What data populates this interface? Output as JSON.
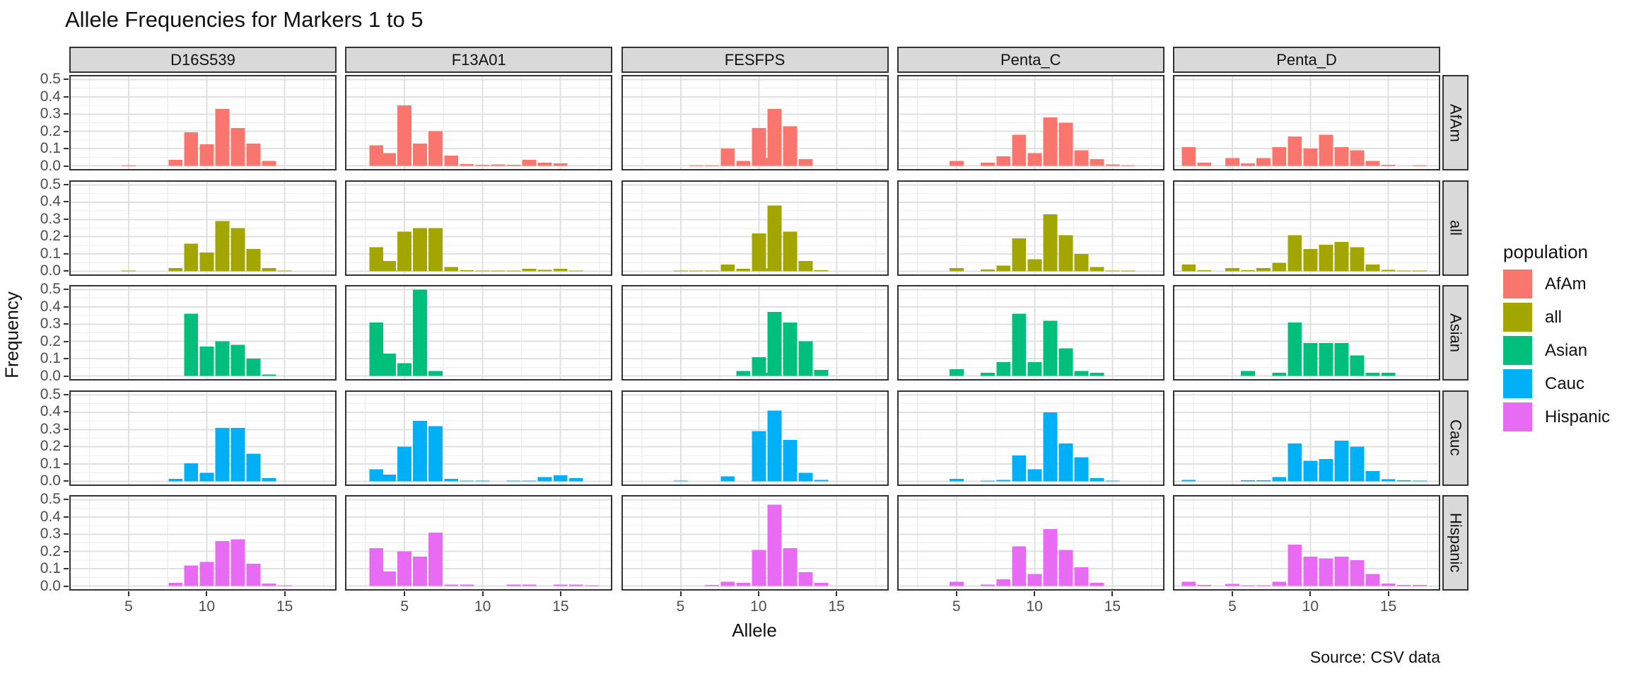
{
  "chart_data": {
    "type": "bar",
    "title": "Allele Frequencies for Markers 1 to 5",
    "xlabel": "Allele",
    "ylabel": "Frequency",
    "caption": "Source: CSV data",
    "legend_title": "population",
    "legend_position": "right",
    "grid": true,
    "x_ticks": [
      5,
      10,
      15
    ],
    "y_ticks": [
      0.0,
      0.1,
      0.2,
      0.3,
      0.4,
      0.5
    ],
    "y_tick_labels": [
      "0.0",
      "0.1",
      "0.2",
      "0.3",
      "0.4",
      "0.5"
    ],
    "xlim": [
      1.2,
      18.3
    ],
    "ylim": [
      0,
      0.5
    ],
    "markers": [
      "D16S539",
      "F13A01",
      "FESFPS",
      "Penta_C",
      "Penta_D"
    ],
    "populations": [
      {
        "name": "AfAm",
        "color": "#F8766D"
      },
      {
        "name": "all",
        "color": "#A3A500"
      },
      {
        "name": "Asian",
        "color": "#00BF7D"
      },
      {
        "name": "Cauc",
        "color": "#00B0F6"
      },
      {
        "name": "Hispanic",
        "color": "#E76BF3"
      }
    ],
    "frequencies": {
      "D16S539": {
        "AfAm": [
          [
            5,
            0.005
          ],
          [
            8,
            0.035
          ],
          [
            9,
            0.195
          ],
          [
            10,
            0.125
          ],
          [
            11,
            0.33
          ],
          [
            12,
            0.22
          ],
          [
            13,
            0.13
          ],
          [
            14,
            0.03
          ]
        ],
        "all": [
          [
            5,
            0.003
          ],
          [
            8,
            0.02
          ],
          [
            9,
            0.16
          ],
          [
            10,
            0.11
          ],
          [
            11,
            0.29
          ],
          [
            12,
            0.25
          ],
          [
            13,
            0.13
          ],
          [
            14,
            0.02
          ],
          [
            15,
            0.003
          ]
        ],
        "Asian": [
          [
            9,
            0.36
          ],
          [
            10,
            0.17
          ],
          [
            11,
            0.2
          ],
          [
            12,
            0.18
          ],
          [
            13,
            0.1
          ],
          [
            14,
            0.01
          ]
        ],
        "Cauc": [
          [
            8,
            0.015
          ],
          [
            9,
            0.105
          ],
          [
            10,
            0.05
          ],
          [
            11,
            0.31
          ],
          [
            12,
            0.31
          ],
          [
            13,
            0.16
          ],
          [
            14,
            0.02
          ]
        ],
        "Hispanic": [
          [
            8,
            0.02
          ],
          [
            9,
            0.12
          ],
          [
            10,
            0.14
          ],
          [
            11,
            0.26
          ],
          [
            12,
            0.27
          ],
          [
            13,
            0.13
          ],
          [
            14,
            0.015
          ],
          [
            15,
            0.003
          ]
        ]
      },
      "F13A01": {
        "AfAm": [
          [
            3.2,
            0.12
          ],
          [
            4,
            0.075
          ],
          [
            4.3,
            0.004
          ],
          [
            5,
            0.35
          ],
          [
            6,
            0.13
          ],
          [
            7,
            0.2
          ],
          [
            8,
            0.06
          ],
          [
            9,
            0.012
          ],
          [
            10,
            0.007
          ],
          [
            11,
            0.01
          ],
          [
            12,
            0.006
          ],
          [
            13,
            0.035
          ],
          [
            14,
            0.02
          ],
          [
            15,
            0.015
          ]
        ],
        "all": [
          [
            3.2,
            0.14
          ],
          [
            4,
            0.06
          ],
          [
            4.3,
            0.003
          ],
          [
            5,
            0.23
          ],
          [
            6,
            0.25
          ],
          [
            7,
            0.25
          ],
          [
            8,
            0.025
          ],
          [
            9,
            0.006
          ],
          [
            10,
            0.004
          ],
          [
            11,
            0.005
          ],
          [
            12,
            0.004
          ],
          [
            13,
            0.015
          ],
          [
            14,
            0.01
          ],
          [
            15,
            0.015
          ],
          [
            16,
            0.004
          ]
        ],
        "Asian": [
          [
            3.2,
            0.31
          ],
          [
            4,
            0.13
          ],
          [
            5,
            0.075
          ],
          [
            6,
            0.5
          ],
          [
            7,
            0.03
          ]
        ],
        "Cauc": [
          [
            3.2,
            0.07
          ],
          [
            4,
            0.04
          ],
          [
            5,
            0.2
          ],
          [
            6,
            0.35
          ],
          [
            7,
            0.32
          ],
          [
            8,
            0.015
          ],
          [
            9,
            0.004
          ],
          [
            10,
            0.004
          ],
          [
            12,
            0.005
          ],
          [
            13,
            0.005
          ],
          [
            14,
            0.025
          ],
          [
            15,
            0.035
          ],
          [
            16,
            0.02
          ]
        ],
        "Hispanic": [
          [
            3.2,
            0.22
          ],
          [
            4,
            0.085
          ],
          [
            5,
            0.2
          ],
          [
            6,
            0.17
          ],
          [
            7,
            0.31
          ],
          [
            8,
            0.008
          ],
          [
            9,
            0.008
          ],
          [
            12,
            0.008
          ],
          [
            13,
            0.008
          ],
          [
            15,
            0.008
          ],
          [
            16,
            0.008
          ],
          [
            17,
            0.004
          ]
        ]
      },
      "FESFPS": {
        "AfAm": [
          [
            6,
            0.004
          ],
          [
            7,
            0.004
          ],
          [
            8,
            0.1
          ],
          [
            9,
            0.03
          ],
          [
            10,
            0.22
          ],
          [
            10.75,
            0.045
          ],
          [
            11,
            0.33
          ],
          [
            12,
            0.23
          ],
          [
            13,
            0.04
          ]
        ],
        "all": [
          [
            5,
            0.002
          ],
          [
            6,
            0.003
          ],
          [
            7,
            0.003
          ],
          [
            8,
            0.04
          ],
          [
            9,
            0.015
          ],
          [
            10,
            0.22
          ],
          [
            10.75,
            0.017
          ],
          [
            11,
            0.38
          ],
          [
            12,
            0.23
          ],
          [
            13,
            0.06
          ],
          [
            14,
            0.006
          ]
        ],
        "Asian": [
          [
            9,
            0.03
          ],
          [
            10,
            0.11
          ],
          [
            10.75,
            0.02
          ],
          [
            11,
            0.37
          ],
          [
            12,
            0.31
          ],
          [
            13,
            0.2
          ],
          [
            14,
            0.035
          ]
        ],
        "Cauc": [
          [
            5,
            0.004
          ],
          [
            8,
            0.03
          ],
          [
            10,
            0.29
          ],
          [
            11,
            0.41
          ],
          [
            12,
            0.24
          ],
          [
            13,
            0.05
          ],
          [
            14,
            0.008
          ]
        ],
        "Hispanic": [
          [
            7,
            0.006
          ],
          [
            8,
            0.025
          ],
          [
            9,
            0.02
          ],
          [
            10,
            0.21
          ],
          [
            11,
            0.47
          ],
          [
            12,
            0.22
          ],
          [
            13,
            0.08
          ],
          [
            14,
            0.02
          ]
        ]
      },
      "Penta_C": {
        "AfAm": [
          [
            5,
            0.03
          ],
          [
            7,
            0.02
          ],
          [
            8,
            0.055
          ],
          [
            9,
            0.18
          ],
          [
            10,
            0.075
          ],
          [
            11,
            0.28
          ],
          [
            12,
            0.25
          ],
          [
            13,
            0.09
          ],
          [
            14,
            0.04
          ],
          [
            15,
            0.01
          ],
          [
            16,
            0.005
          ]
        ],
        "all": [
          [
            5,
            0.02
          ],
          [
            7,
            0.011
          ],
          [
            8,
            0.033
          ],
          [
            9,
            0.19
          ],
          [
            10,
            0.07
          ],
          [
            11,
            0.33
          ],
          [
            12,
            0.21
          ],
          [
            13,
            0.1
          ],
          [
            14,
            0.025
          ],
          [
            15,
            0.005
          ],
          [
            16,
            0.003
          ]
        ],
        "Asian": [
          [
            5,
            0.04
          ],
          [
            7,
            0.02
          ],
          [
            8,
            0.08
          ],
          [
            9,
            0.36
          ],
          [
            10,
            0.08
          ],
          [
            11,
            0.32
          ],
          [
            12,
            0.16
          ],
          [
            13,
            0.03
          ],
          [
            14,
            0.02
          ]
        ],
        "Cauc": [
          [
            5,
            0.015
          ],
          [
            7,
            0.005
          ],
          [
            8,
            0.01
          ],
          [
            9,
            0.15
          ],
          [
            10,
            0.07
          ],
          [
            11,
            0.4
          ],
          [
            12,
            0.22
          ],
          [
            13,
            0.14
          ],
          [
            14,
            0.02
          ],
          [
            15,
            0.004
          ]
        ],
        "Hispanic": [
          [
            5,
            0.025
          ],
          [
            7,
            0.01
          ],
          [
            8,
            0.04
          ],
          [
            9,
            0.23
          ],
          [
            10,
            0.07
          ],
          [
            11,
            0.33
          ],
          [
            12,
            0.21
          ],
          [
            13,
            0.11
          ],
          [
            14,
            0.02
          ]
        ]
      },
      "Penta_D": {
        "AfAm": [
          [
            2.2,
            0.11
          ],
          [
            3.2,
            0.02
          ],
          [
            5,
            0.045
          ],
          [
            6,
            0.015
          ],
          [
            7,
            0.045
          ],
          [
            8,
            0.11
          ],
          [
            9,
            0.17
          ],
          [
            10,
            0.1
          ],
          [
            11,
            0.18
          ],
          [
            12,
            0.11
          ],
          [
            13,
            0.09
          ],
          [
            14,
            0.03
          ],
          [
            15,
            0.006
          ],
          [
            17,
            0.004
          ]
        ],
        "all": [
          [
            2.2,
            0.04
          ],
          [
            3.2,
            0.006
          ],
          [
            5,
            0.02
          ],
          [
            6,
            0.007
          ],
          [
            7,
            0.02
          ],
          [
            8,
            0.05
          ],
          [
            9,
            0.21
          ],
          [
            10,
            0.13
          ],
          [
            11,
            0.155
          ],
          [
            12,
            0.17
          ],
          [
            13,
            0.14
          ],
          [
            14,
            0.04
          ],
          [
            15,
            0.01
          ],
          [
            16,
            0.005
          ],
          [
            17,
            0.005
          ]
        ],
        "Asian": [
          [
            6,
            0.03
          ],
          [
            8,
            0.02
          ],
          [
            9,
            0.31
          ],
          [
            10,
            0.19
          ],
          [
            11,
            0.19
          ],
          [
            12,
            0.19
          ],
          [
            13,
            0.12
          ],
          [
            14,
            0.02
          ],
          [
            15,
            0.02
          ]
        ],
        "Cauc": [
          [
            2.2,
            0.01
          ],
          [
            6,
            0.007
          ],
          [
            7,
            0.007
          ],
          [
            8,
            0.025
          ],
          [
            9,
            0.22
          ],
          [
            10,
            0.12
          ],
          [
            11,
            0.13
          ],
          [
            12,
            0.235
          ],
          [
            13,
            0.2
          ],
          [
            14,
            0.06
          ],
          [
            15,
            0.013
          ],
          [
            16,
            0.006
          ],
          [
            17,
            0.005
          ]
        ],
        "Hispanic": [
          [
            2.2,
            0.025
          ],
          [
            3.2,
            0.007
          ],
          [
            5,
            0.013
          ],
          [
            6,
            0.005
          ],
          [
            7,
            0.005
          ],
          [
            8,
            0.025
          ],
          [
            9,
            0.24
          ],
          [
            10,
            0.17
          ],
          [
            11,
            0.16
          ],
          [
            12,
            0.17
          ],
          [
            13,
            0.15
          ],
          [
            14,
            0.07
          ],
          [
            15,
            0.015
          ],
          [
            16,
            0.006
          ],
          [
            17,
            0.006
          ]
        ]
      }
    }
  }
}
